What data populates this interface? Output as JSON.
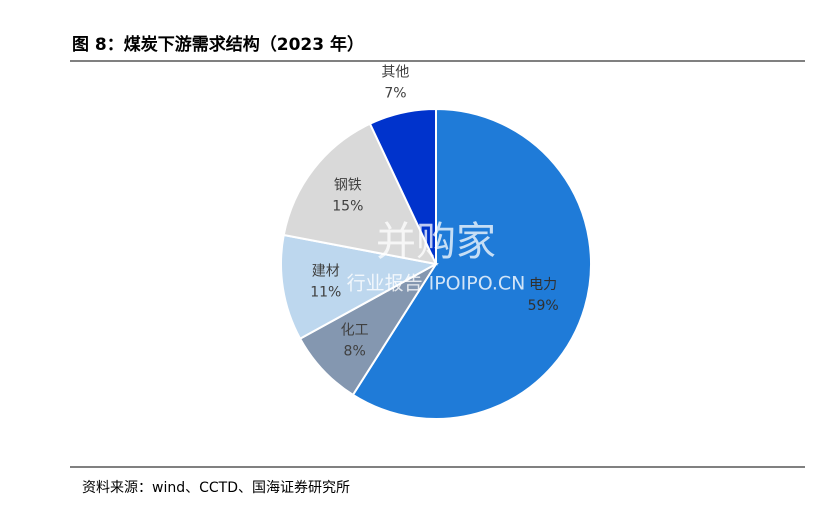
{
  "title": "图 8：煤炭下游需求结构（2023 年）",
  "source": "资料来源：wind、CCTD、国海证券研究所",
  "watermark": [
    "并购家",
    "行业报告 IPOIPO.CN"
  ],
  "chart_data": {
    "type": "pie",
    "categories": [
      "电力",
      "化工",
      "建材",
      "钢铁",
      "其他"
    ],
    "values": [
      59,
      8,
      11,
      15,
      7
    ],
    "value_labels": [
      "59%",
      "8%",
      "11%",
      "15%",
      "7%"
    ],
    "colors": [
      "#1f7bd8",
      "#8497b0",
      "#bdd7ee",
      "#d9d9d9",
      "#0033cc"
    ]
  }
}
